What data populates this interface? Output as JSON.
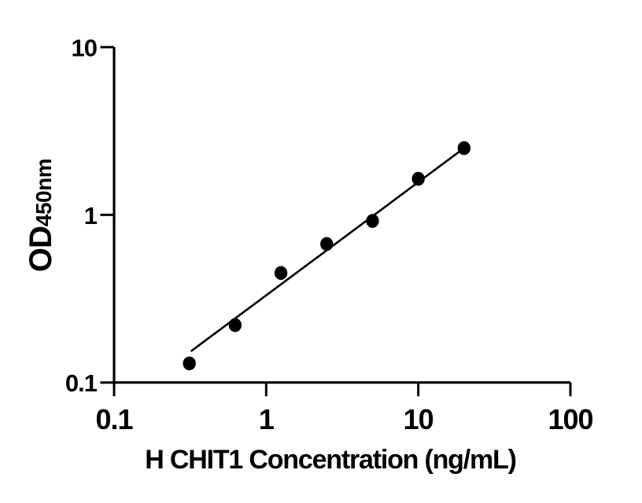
{
  "figure": {
    "background": "#ffffff",
    "foreground": "#000000"
  },
  "chart_data": {
    "type": "scatter",
    "title": "",
    "xlabel": "H CHIT1 Concentration (ng/mL)",
    "ylabel_main": "OD",
    "ylabel_subscript": "450nm",
    "xscale": "log",
    "yscale": "log",
    "xlim": [
      0.1,
      100
    ],
    "ylim": [
      0.1,
      10
    ],
    "xticks": {
      "values": [
        0.1,
        1,
        10,
        100
      ],
      "labels": [
        "0.1",
        "1",
        "10",
        "100"
      ]
    },
    "yticks": {
      "values": [
        0.1,
        1,
        10
      ],
      "labels": [
        "0.1",
        "1",
        "10"
      ]
    },
    "grid": false,
    "legend": null,
    "series": [
      {
        "name": "standard-curve-points",
        "marker": "circle",
        "color": "#000000",
        "x": [
          0.3125,
          0.625,
          1.25,
          2.5,
          5,
          10,
          20
        ],
        "y": [
          0.13,
          0.22,
          0.45,
          0.67,
          0.92,
          1.64,
          2.5
        ]
      }
    ],
    "trend_line": {
      "color": "#000000",
      "x1": 0.32,
      "y1": 0.1535,
      "x2": 20,
      "y2": 2.5
    }
  }
}
